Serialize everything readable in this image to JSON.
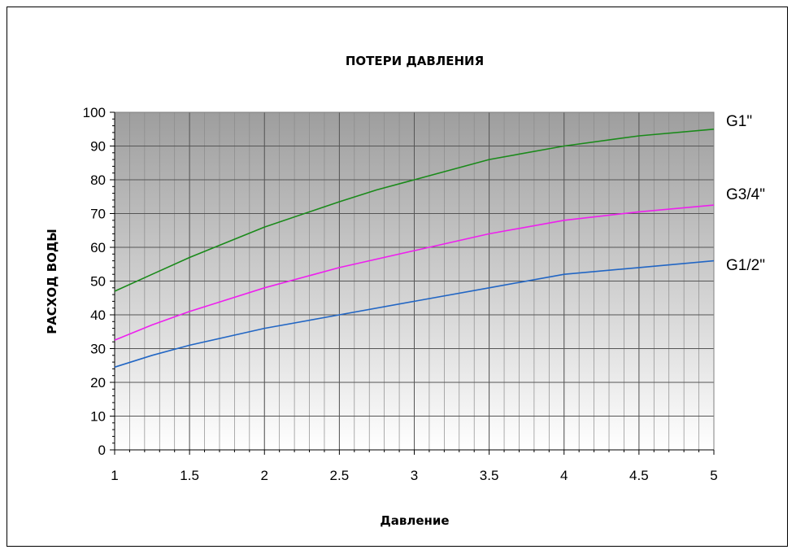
{
  "chart_data": {
    "type": "line",
    "title": "ПОТЕРИ ДАВЛЕНИЯ",
    "xlabel": "Давление",
    "ylabel": "РАСХОД ВОДЫ",
    "xlim": [
      1,
      5
    ],
    "ylim": [
      0,
      100
    ],
    "x_ticks": [
      "1",
      "1.5",
      "2",
      "2.5",
      "3",
      "3.5",
      "4",
      "4.5",
      "5"
    ],
    "y_ticks": [
      "0",
      "10",
      "20",
      "30",
      "40",
      "50",
      "60",
      "70",
      "80",
      "90",
      "100"
    ],
    "grid": true,
    "legend": "end-of-line labels (right)",
    "series": [
      {
        "name": "G1\"",
        "color": "#1a8a1a",
        "x": [
          1,
          1.25,
          1.5,
          2,
          2.5,
          2.75,
          3,
          3.5,
          4,
          4.5,
          5
        ],
        "y": [
          47,
          52,
          57,
          66,
          73.5,
          77,
          80,
          86,
          90,
          93,
          95
        ]
      },
      {
        "name": "G3/4\"",
        "color": "#ee1fee",
        "x": [
          1,
          1.25,
          1.5,
          2,
          2.5,
          3,
          3.5,
          4,
          4.5,
          5
        ],
        "y": [
          32.5,
          37,
          41,
          48,
          54,
          59,
          64,
          68,
          70.5,
          72.5
        ]
      },
      {
        "name": "G1/2\"",
        "color": "#2266c4",
        "x": [
          1,
          1.25,
          1.5,
          2,
          2.5,
          3,
          3.5,
          4,
          4.5,
          5
        ],
        "y": [
          24.5,
          28,
          31,
          36,
          40,
          44,
          48,
          52,
          54,
          56
        ]
      }
    ]
  }
}
